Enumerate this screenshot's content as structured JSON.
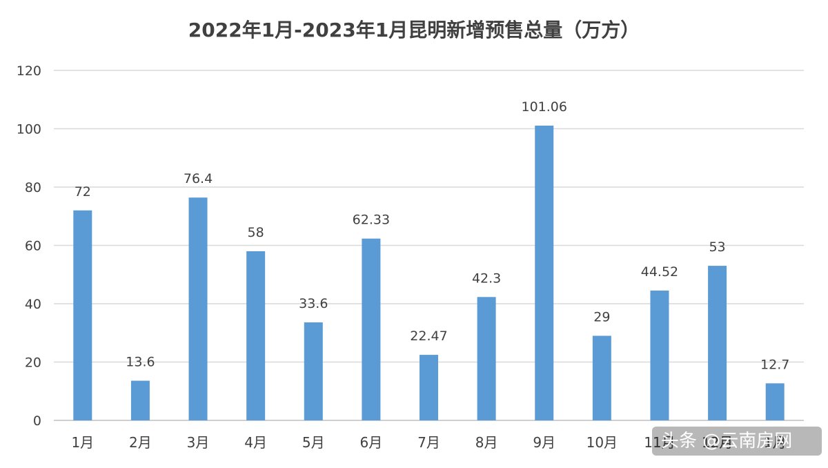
{
  "chart_data": {
    "type": "bar",
    "title": "2022年1月-2023年1月昆明新增预售总量（万方）",
    "categories": [
      "1月",
      "2月",
      "3月",
      "4月",
      "5月",
      "6月",
      "7月",
      "8月",
      "9月",
      "10月",
      "11月",
      "12月",
      "1月"
    ],
    "values": [
      72,
      13.6,
      76.4,
      58,
      33.6,
      62.33,
      22.47,
      42.3,
      101.06,
      29,
      44.52,
      53,
      12.7
    ],
    "value_labels": [
      "72",
      "13.6",
      "76.4",
      "58",
      "33.6",
      "62.33",
      "22.47",
      "42.3",
      "101.06",
      "29",
      "44.52",
      "53",
      "12.7"
    ],
    "ylim": [
      0,
      120
    ],
    "yticks": [
      0,
      20,
      40,
      60,
      80,
      100,
      120
    ],
    "grid": true,
    "legend": "none",
    "xlabel": "",
    "ylabel": "",
    "bar_color": "#5b9bd5"
  },
  "watermark": {
    "text": "头条 @云南房网",
    "icon": "toutiao-logo"
  }
}
